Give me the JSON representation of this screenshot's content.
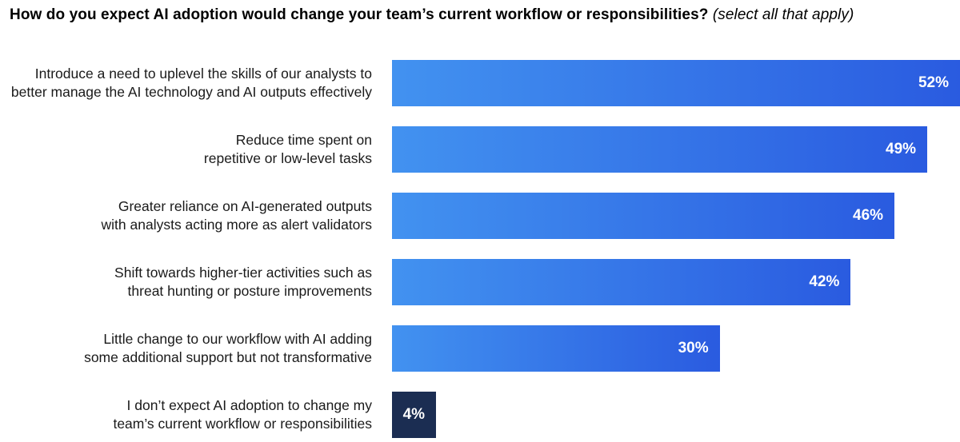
{
  "title": {
    "main": "How do you expect AI adoption would change your team’s current workflow or responsibilities?",
    "note": "(select all that apply)"
  },
  "chart_data": {
    "type": "bar",
    "orientation": "horizontal",
    "title": "How do you expect AI adoption would change your team’s current workflow or responsibilities? (select all that apply)",
    "xlabel": "",
    "ylabel": "",
    "value_format": "percent",
    "xlim": [
      0,
      52
    ],
    "grid": false,
    "legend": false,
    "categories": [
      "Introduce a need to uplevel the skills of our analysts to better manage the AI technology and AI outputs effectively",
      "Reduce time spent on repetitive or low-level tasks",
      "Greater reliance on AI-generated outputs with analysts acting more as alert validators",
      "Shift towards higher-tier activities such as threat hunting or posture improvements",
      "Little change to our workflow with AI adding some additional support but not transformative",
      "I don’t expect AI adoption to change my team’s current workflow or responsibilities"
    ],
    "values": [
      52,
      49,
      46,
      42,
      30,
      4
    ],
    "rows": [
      {
        "label": "Introduce a need to uplevel the skills of our analysts to\nbetter manage the AI technology and AI outputs effectively",
        "value": 52,
        "value_label": "52%",
        "variant": "gradient"
      },
      {
        "label": "Reduce time spent on\nrepetitive or low-level tasks",
        "value": 49,
        "value_label": "49%",
        "variant": "gradient"
      },
      {
        "label": "Greater reliance on AI-generated outputs\nwith analysts acting more as alert validators",
        "value": 46,
        "value_label": "46%",
        "variant": "gradient"
      },
      {
        "label": "Shift towards higher-tier activities such as\nthreat hunting or posture improvements",
        "value": 42,
        "value_label": "42%",
        "variant": "gradient"
      },
      {
        "label": "Little change to our workflow with AI adding\nsome additional support but not transformative",
        "value": 30,
        "value_label": "30%",
        "variant": "gradient"
      },
      {
        "label": "I don’t expect AI adoption to change my\nteam’s current workflow or responsibilities",
        "value": 4,
        "value_label": "4%",
        "variant": "dark"
      }
    ],
    "colors": {
      "bar_gradient_start": "#4292F0",
      "bar_gradient_end": "#2A5BE0",
      "dark_bar": "#1B2D52",
      "value_text": "#FFFFFF",
      "label_text": "#1A1A1A",
      "title_text": "#000000",
      "background": "#FFFFFF"
    }
  }
}
